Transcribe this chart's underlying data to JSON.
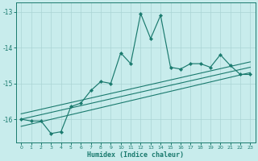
{
  "xlabel": "Humidex (Indice chaleur)",
  "bg_color": "#c8ecec",
  "line_color": "#1a7a6e",
  "grid_color": "#aad4d4",
  "x_data": [
    0,
    1,
    2,
    3,
    4,
    5,
    6,
    7,
    8,
    9,
    10,
    11,
    12,
    13,
    14,
    15,
    16,
    17,
    18,
    19,
    20,
    21,
    22,
    23
  ],
  "y_main": [
    -16.0,
    -16.05,
    -16.05,
    -16.4,
    -16.35,
    -15.65,
    -15.55,
    -15.2,
    -14.95,
    -15.0,
    -14.15,
    -14.45,
    -13.05,
    -13.75,
    -13.1,
    -14.55,
    -14.6,
    -14.45,
    -14.45,
    -14.55,
    -14.2,
    -14.5,
    -14.75,
    -14.75
  ],
  "reg_lines": [
    {
      "x0": 0,
      "y0": -16.2,
      "x1": 23,
      "y1": -14.7
    },
    {
      "x0": 0,
      "y0": -16.0,
      "x1": 23,
      "y1": -14.55
    },
    {
      "x0": 0,
      "y0": -15.85,
      "x1": 23,
      "y1": -14.4
    }
  ],
  "ylim": [
    -16.65,
    -12.75
  ],
  "xlim": [
    -0.5,
    23.5
  ],
  "yticks": [
    -16,
    -15,
    -14,
    -13
  ],
  "xticks": [
    0,
    1,
    2,
    3,
    4,
    5,
    6,
    7,
    8,
    9,
    10,
    11,
    12,
    13,
    14,
    15,
    16,
    17,
    18,
    19,
    20,
    21,
    22,
    23
  ]
}
